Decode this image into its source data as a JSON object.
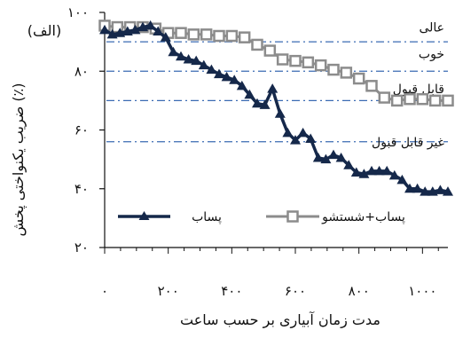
{
  "chart_data": {
    "type": "line",
    "panel_label": "(الف)",
    "xlabel": "مدت زمان آبیاری بر حسب ساعت",
    "ylabel": "ضریب یکنواختی پخش (٪)",
    "xlim": [
      0,
      1080
    ],
    "ylim": [
      20,
      100
    ],
    "x_ticks": [
      0,
      200,
      400,
      600,
      800,
      1000
    ],
    "x_tick_labels": [
      "۰",
      "۲۰۰",
      "۴۰۰",
      "۶۰۰",
      "۸۰۰",
      "۱۰۰۰"
    ],
    "y_ticks": [
      20,
      40,
      60,
      80,
      100
    ],
    "y_tick_labels": [
      "۲۰",
      "۴۰",
      "۶۰",
      "۸۰",
      "۱۰۰"
    ],
    "grid": false,
    "legend_position": "bottom",
    "reference_lines": [
      {
        "y": 90,
        "label": "عالی",
        "label_y": 95
      },
      {
        "y": 80,
        "label": "خوب",
        "label_y": 86
      },
      {
        "y": 70,
        "label": "قابل قبول",
        "label_y": 74
      },
      {
        "y": 56,
        "label": "غیر قابل قبول",
        "label_y": 56
      }
    ],
    "series": [
      {
        "name": "پساب",
        "marker": "triangle",
        "color": "#15284a",
        "x": [
          0,
          24,
          48,
          72,
          96,
          120,
          144,
          168,
          192,
          216,
          240,
          264,
          288,
          312,
          336,
          360,
          384,
          408,
          432,
          456,
          480,
          504,
          528,
          552,
          576,
          600,
          624,
          648,
          672,
          696,
          720,
          744,
          768,
          792,
          816,
          840,
          864,
          888,
          912,
          936,
          960,
          984,
          1008,
          1032,
          1056,
          1080
        ],
        "y": [
          94,
          92.5,
          93,
          93.5,
          94,
          95,
          95.5,
          93.5,
          91.5,
          86.5,
          85,
          84,
          83.5,
          82,
          80.5,
          79,
          78,
          77,
          75,
          72,
          69,
          68.5,
          74,
          65.5,
          59,
          56.5,
          59,
          57,
          50.5,
          50,
          51.5,
          50.5,
          48,
          45.5,
          45,
          46,
          46,
          46,
          44.5,
          43,
          40,
          40,
          39,
          39,
          39.5,
          39
        ]
      },
      {
        "name": "پساب+شستشو",
        "marker": "square",
        "color": "#8c8c8c",
        "x": [
          0,
          40,
          80,
          120,
          160,
          200,
          240,
          280,
          320,
          360,
          400,
          440,
          480,
          520,
          560,
          600,
          640,
          680,
          720,
          760,
          800,
          840,
          880,
          920,
          960,
          1000,
          1040,
          1080
        ],
        "y": [
          95.5,
          95,
          95,
          95,
          94.5,
          93,
          93,
          92.5,
          92.5,
          92,
          92,
          91.5,
          89,
          87,
          84,
          83.5,
          83,
          82,
          80.5,
          79.5,
          77.5,
          75,
          71,
          70,
          70.5,
          70.5,
          70,
          70
        ]
      }
    ]
  }
}
